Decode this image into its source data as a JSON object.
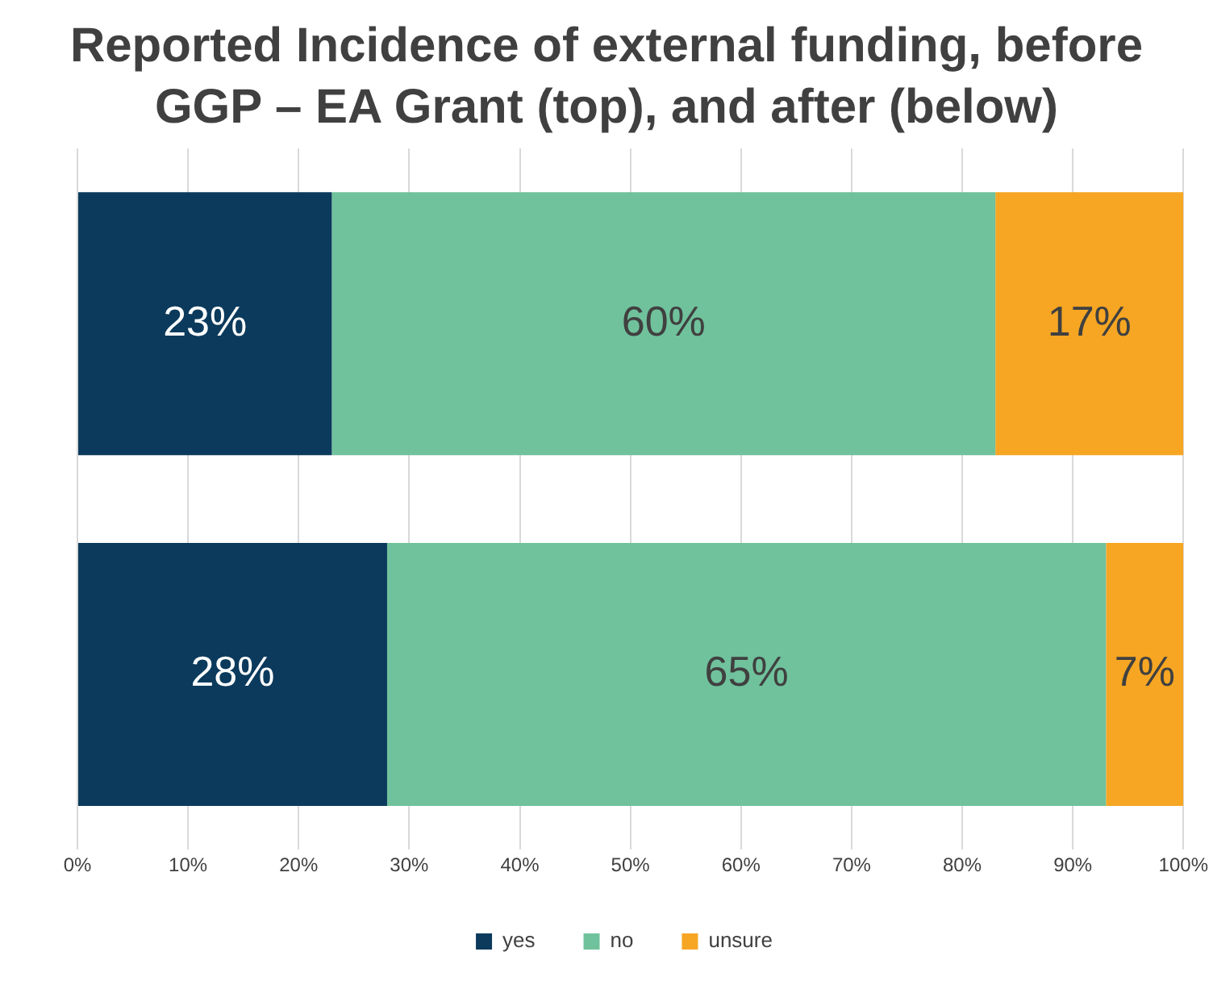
{
  "chart_data": {
    "type": "bar",
    "title": "Reported Incidence of external funding, before GGP – EA Grant (top), and after (below)",
    "orientation": "horizontal",
    "stacked": true,
    "categories": [
      null,
      null
    ],
    "series": [
      {
        "name": "yes",
        "color": "#0b3a5c",
        "values": [
          23,
          28
        ],
        "value_labels": [
          "23%",
          "28%"
        ]
      },
      {
        "name": "no",
        "color": "#70c29c",
        "values": [
          60,
          65
        ],
        "value_labels": [
          "60%",
          "65%"
        ]
      },
      {
        "name": "unsure",
        "color": "#f6a623",
        "values": [
          17,
          7
        ],
        "value_labels": [
          "17%",
          "7%"
        ]
      }
    ],
    "xlim": [
      0,
      100
    ],
    "xticks": [
      {
        "value": 0,
        "label": "0%"
      },
      {
        "value": 10,
        "label": "10%"
      },
      {
        "value": 20,
        "label": "20%"
      },
      {
        "value": 30,
        "label": "30%"
      },
      {
        "value": 40,
        "label": "40%"
      },
      {
        "value": 50,
        "label": "50%"
      },
      {
        "value": 60,
        "label": "60%"
      },
      {
        "value": 70,
        "label": "70%"
      },
      {
        "value": 80,
        "label": "80%"
      },
      {
        "value": 90,
        "label": "90%"
      },
      {
        "value": 100,
        "label": "100%"
      }
    ],
    "grid": "x",
    "legend": "bottom"
  }
}
